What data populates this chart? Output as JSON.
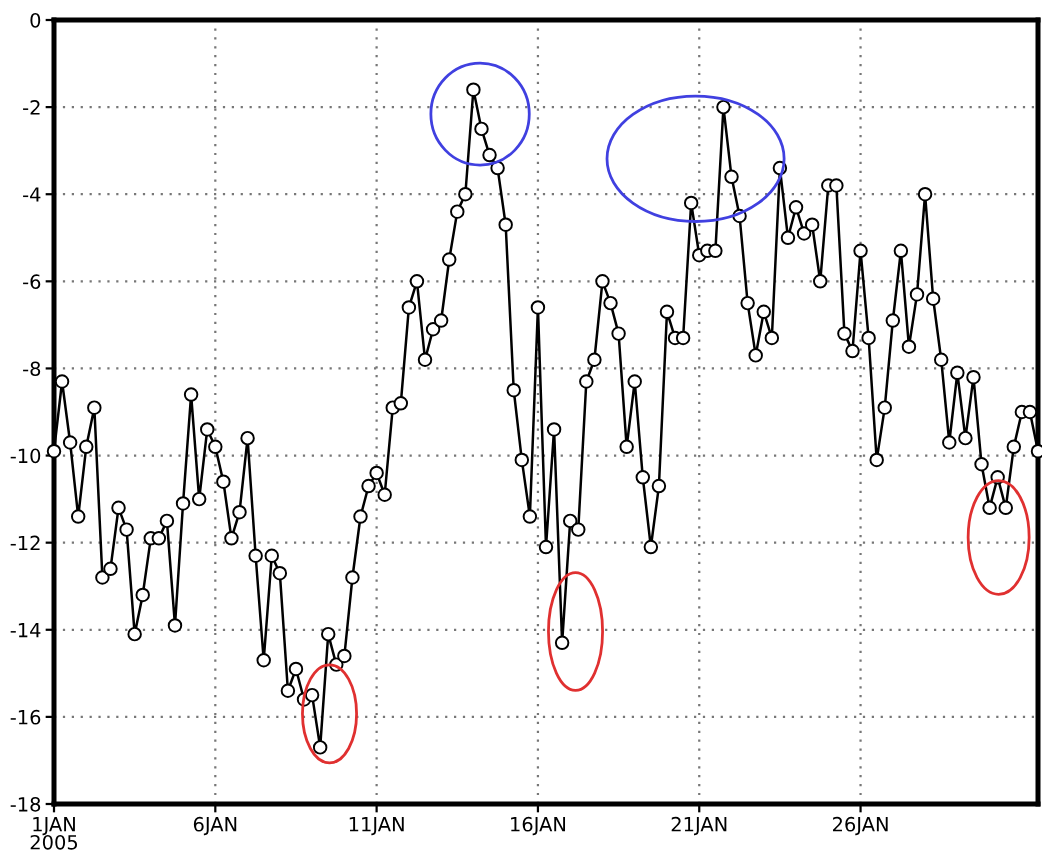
{
  "chart_data": {
    "type": "line",
    "xlim": [
      "2005-01-01",
      "2005-01-31T12:00"
    ],
    "xticks": [
      {
        "value": "2005-01-01",
        "label": "1JAN\n2005"
      },
      {
        "value": "2005-01-06",
        "label": "6JAN"
      },
      {
        "value": "2005-01-11",
        "label": "11JAN"
      },
      {
        "value": "2005-01-16",
        "label": "16JAN"
      },
      {
        "value": "2005-01-21",
        "label": "21JAN"
      },
      {
        "value": "2005-01-26",
        "label": "26JAN"
      }
    ],
    "ylim": [
      -18,
      0
    ],
    "yticks": [
      -18,
      -16,
      -14,
      -12,
      -10,
      -8,
      -6,
      -4,
      -2,
      0
    ],
    "grid": true,
    "marker": "circle",
    "line_style": "solid",
    "series": [
      {
        "color": "#000000",
        "x": [
          "2005-01-01T00:00",
          "2005-01-01T06:00",
          "2005-01-01T12:00",
          "2005-01-01T18:00",
          "2005-01-02T00:00",
          "2005-01-02T06:00",
          "2005-01-02T12:00",
          "2005-01-02T18:00",
          "2005-01-03T00:00",
          "2005-01-03T06:00",
          "2005-01-03T12:00",
          "2005-01-03T18:00",
          "2005-01-04T00:00",
          "2005-01-04T06:00",
          "2005-01-04T12:00",
          "2005-01-04T18:00",
          "2005-01-05T00:00",
          "2005-01-05T06:00",
          "2005-01-05T12:00",
          "2005-01-05T18:00",
          "2005-01-06T00:00",
          "2005-01-06T06:00",
          "2005-01-06T12:00",
          "2005-01-06T18:00",
          "2005-01-07T00:00",
          "2005-01-07T06:00",
          "2005-01-07T12:00",
          "2005-01-07T18:00",
          "2005-01-08T00:00",
          "2005-01-08T06:00",
          "2005-01-08T12:00",
          "2005-01-08T18:00",
          "2005-01-09T00:00",
          "2005-01-09T06:00",
          "2005-01-09T12:00",
          "2005-01-09T18:00",
          "2005-01-10T00:00",
          "2005-01-10T06:00",
          "2005-01-10T12:00",
          "2005-01-10T18:00",
          "2005-01-11T00:00",
          "2005-01-11T06:00",
          "2005-01-11T12:00",
          "2005-01-11T18:00",
          "2005-01-12T00:00",
          "2005-01-12T06:00",
          "2005-01-12T12:00",
          "2005-01-12T18:00",
          "2005-01-13T00:00",
          "2005-01-13T06:00",
          "2005-01-13T12:00",
          "2005-01-13T18:00",
          "2005-01-14T00:00",
          "2005-01-14T06:00",
          "2005-01-14T12:00",
          "2005-01-14T18:00",
          "2005-01-15T00:00",
          "2005-01-15T06:00",
          "2005-01-15T12:00",
          "2005-01-15T18:00",
          "2005-01-16T00:00",
          "2005-01-16T06:00",
          "2005-01-16T12:00",
          "2005-01-16T18:00",
          "2005-01-17T00:00",
          "2005-01-17T06:00",
          "2005-01-17T12:00",
          "2005-01-17T18:00",
          "2005-01-18T00:00",
          "2005-01-18T06:00",
          "2005-01-18T12:00",
          "2005-01-18T18:00",
          "2005-01-19T00:00",
          "2005-01-19T06:00",
          "2005-01-19T12:00",
          "2005-01-19T18:00",
          "2005-01-20T00:00",
          "2005-01-20T06:00",
          "2005-01-20T12:00",
          "2005-01-20T18:00",
          "2005-01-21T00:00",
          "2005-01-21T06:00",
          "2005-01-21T12:00",
          "2005-01-21T18:00",
          "2005-01-22T00:00",
          "2005-01-22T06:00",
          "2005-01-22T12:00",
          "2005-01-22T18:00",
          "2005-01-23T00:00",
          "2005-01-23T06:00",
          "2005-01-23T12:00",
          "2005-01-23T18:00",
          "2005-01-24T00:00",
          "2005-01-24T06:00",
          "2005-01-24T12:00",
          "2005-01-24T18:00",
          "2005-01-25T00:00",
          "2005-01-25T06:00",
          "2005-01-25T12:00",
          "2005-01-25T18:00",
          "2005-01-26T00:00",
          "2005-01-26T06:00",
          "2005-01-26T12:00",
          "2005-01-26T18:00",
          "2005-01-27T00:00",
          "2005-01-27T06:00",
          "2005-01-27T12:00",
          "2005-01-27T18:00",
          "2005-01-28T00:00",
          "2005-01-28T06:00",
          "2005-01-28T12:00",
          "2005-01-28T18:00",
          "2005-01-29T00:00",
          "2005-01-29T06:00",
          "2005-01-29T12:00",
          "2005-01-29T18:00",
          "2005-01-30T00:00",
          "2005-01-30T06:00",
          "2005-01-30T12:00",
          "2005-01-30T18:00",
          "2005-01-31T00:00",
          "2005-01-31T06:00",
          "2005-01-31T12:00"
        ],
        "values": [
          -9.9,
          -8.3,
          -9.7,
          -11.4,
          -9.8,
          -8.9,
          -12.8,
          -12.6,
          -11.2,
          -11.7,
          -14.1,
          -13.2,
          -11.9,
          -11.9,
          -11.5,
          -13.9,
          -11.1,
          -8.6,
          -11.0,
          -9.4,
          -9.8,
          -10.6,
          -11.9,
          -11.3,
          -9.6,
          -12.3,
          -14.7,
          -12.3,
          -12.7,
          -15.4,
          -14.9,
          -15.6,
          -15.5,
          -16.7,
          -14.1,
          -14.8,
          -14.6,
          -12.8,
          -11.4,
          -10.7,
          -10.4,
          -10.9,
          -8.9,
          -8.8,
          -6.6,
          -6.0,
          -7.8,
          -7.1,
          -6.9,
          -5.5,
          -4.4,
          -4.0,
          -1.6,
          -2.5,
          -3.1,
          -3.4,
          -4.7,
          -8.5,
          -10.1,
          -11.4,
          -6.6,
          -12.1,
          -9.4,
          -14.3,
          -11.5,
          -11.7,
          -8.3,
          -7.8,
          -6.0,
          -6.5,
          -7.2,
          -9.8,
          -8.3,
          -10.5,
          -12.1,
          -10.7,
          -6.7,
          -7.3,
          -7.3,
          -4.2,
          -5.4,
          -5.3,
          -5.3,
          -2.0,
          -3.6,
          -4.5,
          -6.5,
          -7.7,
          -6.7,
          -7.3,
          -3.4,
          -5.0,
          -4.3,
          -4.9,
          -4.7,
          -6.0,
          -3.8,
          -3.8,
          -7.2,
          -7.6,
          -5.3,
          -7.3,
          -10.1,
          -8.9,
          -6.9,
          -5.3,
          -7.5,
          -6.3,
          -4.0,
          -6.4,
          -7.8,
          -9.7,
          -8.1,
          -9.6,
          -8.2,
          -10.2,
          -11.2,
          -10.5,
          -11.2,
          -9.8,
          -9.0,
          -9.0,
          -9.9
        ]
      }
    ]
  }
}
